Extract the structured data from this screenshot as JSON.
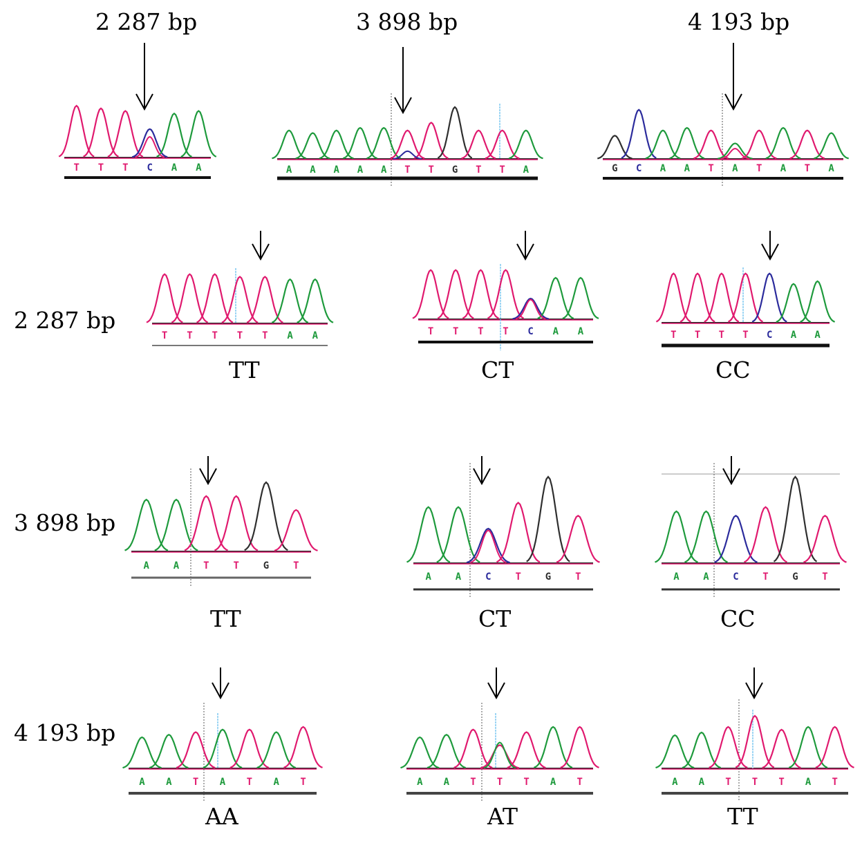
{
  "column_headers": [
    "2 287 bp",
    "3 898 bp",
    "4 193 bp"
  ],
  "row_labels": [
    "2 287 bp",
    "3 898 bp",
    "4 193 bp"
  ],
  "base_colors": {
    "A": "#1e9a3c",
    "T": "#e0196e",
    "C": "#2b2b9c",
    "G": "#2f2f2f"
  },
  "top_panels": [
    {
      "site": "2 287 bp",
      "bases": "TTTCAA",
      "heights": [
        1,
        0.95,
        0.9,
        0.55,
        0.85,
        0.9
      ],
      "secondary": [
        {
          "index": 3,
          "base": "T",
          "height": 0.4
        }
      ]
    },
    {
      "site": "3 898 bp",
      "bases": "AAAAATTGTTA",
      "heights": [
        0.55,
        0.5,
        0.55,
        0.6,
        0.6,
        0.55,
        0.7,
        1,
        0.55,
        0.55,
        0.55
      ],
      "secondary": [
        {
          "index": 5,
          "base": "C",
          "height": 0.15
        }
      ]
    },
    {
      "site": "4 193 bp",
      "bases": "GCAATATATA",
      "heights": [
        0.45,
        0.95,
        0.55,
        0.6,
        0.55,
        0.3,
        0.55,
        0.6,
        0.55,
        0.5
      ],
      "secondary": [
        {
          "index": 5,
          "base": "T",
          "height": 0.2
        }
      ]
    }
  ],
  "genotype_panels": [
    {
      "row": "2 287 bp",
      "genotype": "TT",
      "bases": "TTTTTAA",
      "heights": [
        0.95,
        0.95,
        0.95,
        0.9,
        0.9,
        0.85,
        0.85
      ],
      "secondary": []
    },
    {
      "row": "2 287 bp",
      "genotype": "CT",
      "bases": "TTTTCAA",
      "heights": [
        0.95,
        0.95,
        0.95,
        0.95,
        0.4,
        0.8,
        0.8
      ],
      "secondary": [
        {
          "index": 4,
          "base": "T",
          "height": 0.38
        }
      ]
    },
    {
      "row": "2 287 bp",
      "genotype": "CC",
      "bases": "TTTTCAA",
      "heights": [
        0.95,
        0.95,
        0.95,
        0.95,
        0.95,
        0.75,
        0.8
      ],
      "secondary": []
    },
    {
      "row": "3 898 bp",
      "genotype": "TT",
      "bases": "AATTGT",
      "heights": [
        0.75,
        0.75,
        0.8,
        0.8,
        1,
        0.6
      ],
      "secondary": []
    },
    {
      "row": "3 898 bp",
      "genotype": "CT",
      "bases": "AACTGT",
      "heights": [
        0.65,
        0.65,
        0.4,
        0.7,
        1,
        0.55
      ],
      "secondary": [
        {
          "index": 2,
          "base": "T",
          "height": 0.38
        }
      ]
    },
    {
      "row": "3 898 bp",
      "genotype": "CC",
      "bases": "AACTGT",
      "heights": [
        0.6,
        0.6,
        0.55,
        0.65,
        1,
        0.55
      ],
      "secondary": []
    },
    {
      "row": "4 193 bp",
      "genotype": "AA",
      "bases": "AATATAT",
      "heights": [
        0.6,
        0.65,
        0.7,
        0.75,
        0.75,
        0.7,
        0.8
      ],
      "secondary": []
    },
    {
      "row": "4 193 bp",
      "genotype": "AT",
      "bases": "AATTTAT",
      "heights": [
        0.6,
        0.65,
        0.75,
        0.45,
        0.7,
        0.8,
        0.8
      ],
      "secondary": [
        {
          "index": 3,
          "base": "A",
          "height": 0.5
        }
      ]
    },
    {
      "row": "4 193 bp",
      "genotype": "TT",
      "bases": "AATTTAT",
      "heights": [
        0.6,
        0.65,
        0.75,
        0.95,
        0.7,
        0.75,
        0.75
      ],
      "secondary": []
    }
  ]
}
